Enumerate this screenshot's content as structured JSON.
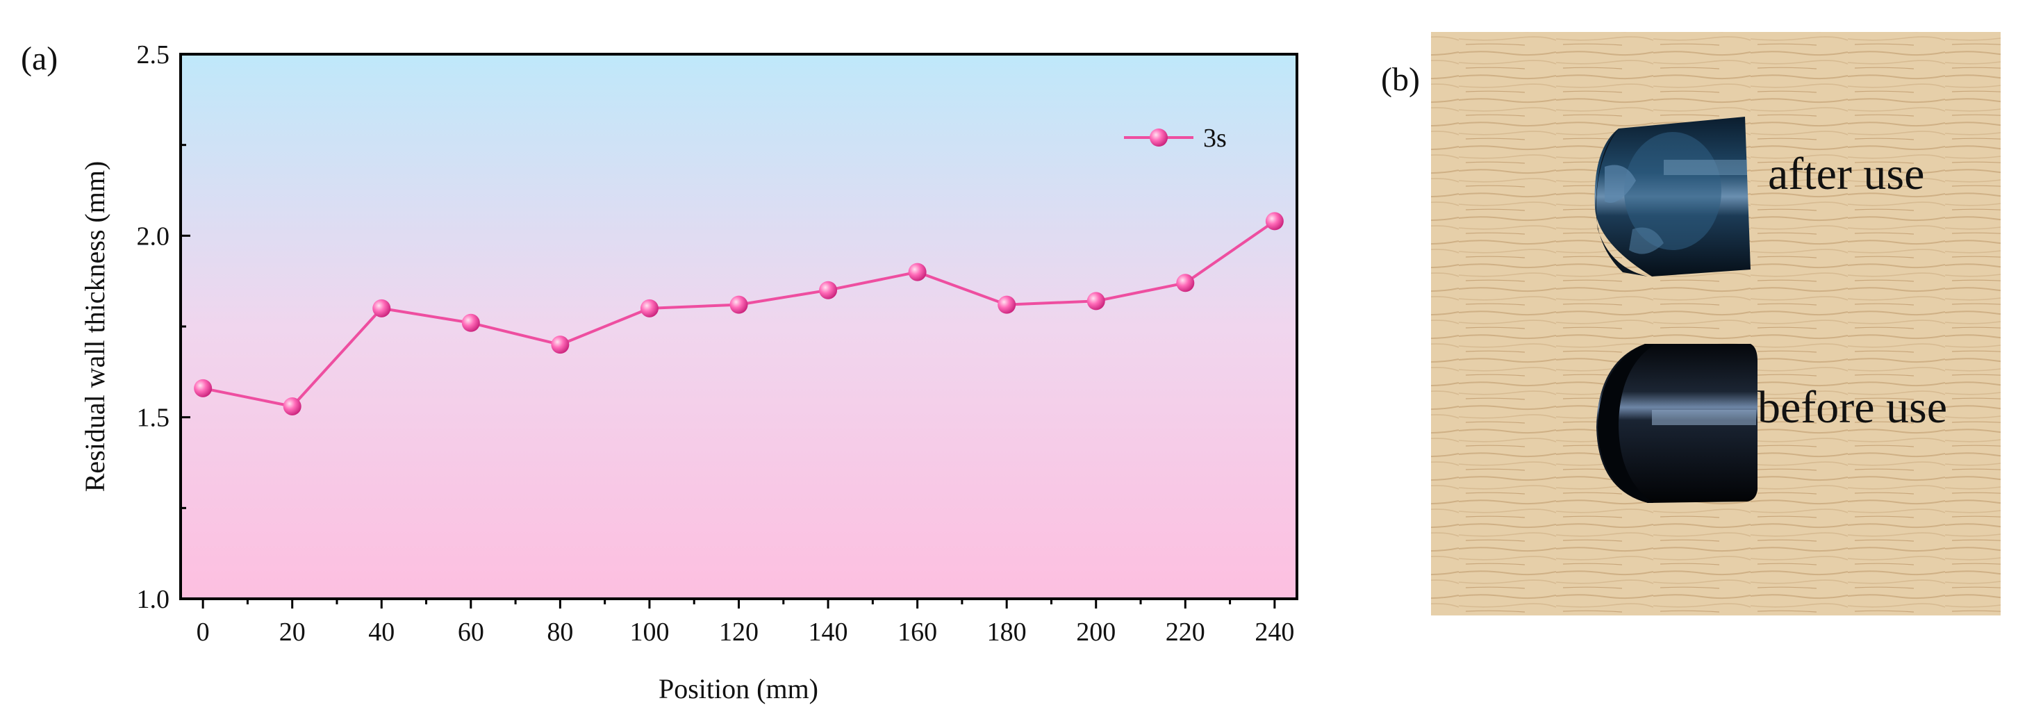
{
  "panel_a": {
    "label": "(a)"
  },
  "panel_b": {
    "label": "(b)",
    "annotations": [
      "after use",
      "before use"
    ]
  },
  "colors": {
    "series": "#ee4ea0",
    "marker": "#ff58b0",
    "plot_bg_top": "#bfe8fa",
    "plot_bg_bottom": "#fdbfe0",
    "wood": "#e6cfa9"
  },
  "chart_data": {
    "type": "line",
    "xlabel": "Position (mm)",
    "ylabel": "Residual wall thickness (mm)",
    "xlim": [
      -5,
      245
    ],
    "ylim": [
      1.0,
      2.5
    ],
    "xticks": [
      0,
      20,
      40,
      60,
      80,
      100,
      120,
      140,
      160,
      180,
      200,
      220,
      240
    ],
    "xtick_labels": [
      "0",
      "20",
      "40",
      "60",
      "80",
      "100",
      "120",
      "140",
      "160",
      "180",
      "200",
      "220",
      "240"
    ],
    "yticks": [
      1.0,
      1.5,
      2.0,
      2.5
    ],
    "ytick_labels": [
      "1.0",
      "1.5",
      "2.0",
      "2.5"
    ],
    "legend_position": "top-right",
    "grid": false,
    "series": [
      {
        "name": "3s",
        "x": [
          0,
          20,
          40,
          60,
          80,
          100,
          120,
          140,
          160,
          180,
          200,
          220,
          240
        ],
        "values": [
          1.58,
          1.53,
          1.8,
          1.76,
          1.7,
          1.8,
          1.81,
          1.85,
          1.9,
          1.81,
          1.82,
          1.87,
          2.04
        ]
      }
    ]
  }
}
